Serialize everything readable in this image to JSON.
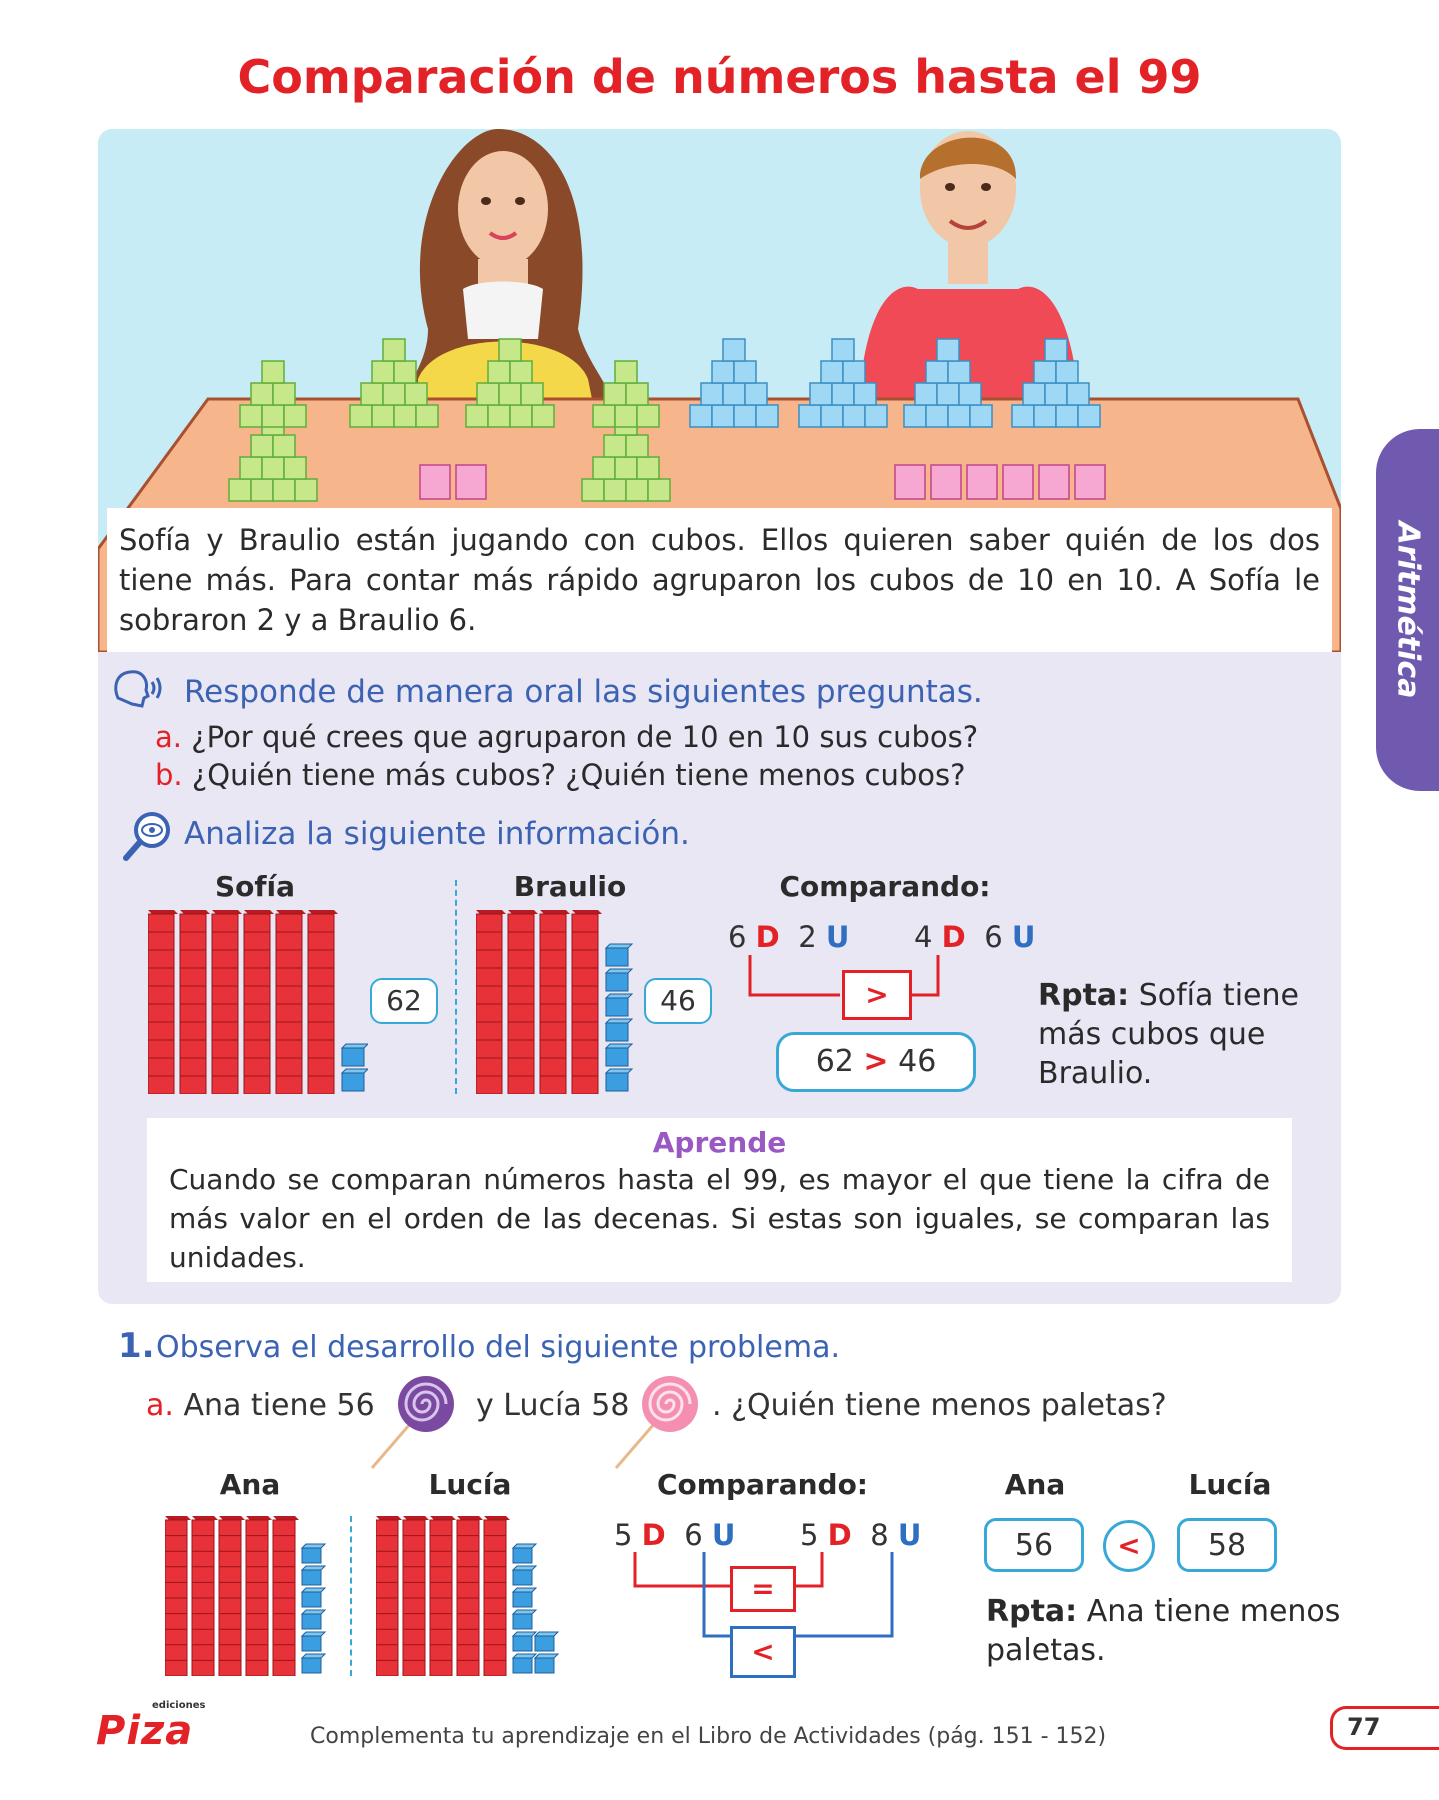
{
  "title": "Comparación de números hasta el 99",
  "side_tab": "Aritmética",
  "story": "Sofía y Braulio están jugando con cubos. Ellos quieren saber quién de los dos tiene más. Para contar más rápido agruparon los cubos de 10 en 10. A Sofía le sobraron 2 y a Braulio 6.",
  "oral": {
    "heading": "Responde de manera oral las siguientes preguntas.",
    "items": [
      {
        "letter": "a.",
        "text": "¿Por qué crees que agruparon de 10 en 10 sus cubos?"
      },
      {
        "letter": "b.",
        "text": "¿Quién tiene más cubos? ¿Quién tiene menos cubos?"
      }
    ]
  },
  "analyze": {
    "heading": "Analiza la siguiente información.",
    "left_name": "Sofía",
    "left_value": "62",
    "left_tens": 6,
    "left_units": 2,
    "right_name": "Braulio",
    "right_value": "46",
    "right_tens": 4,
    "right_units": 6,
    "comparing_label": "Comparando:",
    "left_d_digit": "6",
    "left_u_digit": "2",
    "right_d_digit": "4",
    "right_u_digit": "6",
    "d_letter": "D",
    "u_letter": "U",
    "sign": ">",
    "result_left": "62",
    "result_right": "46",
    "answer_label": "Rpta:",
    "answer_text": "Sofía tiene más cubos que Braulio."
  },
  "learn": {
    "title": "Aprende",
    "body": "Cuando se comparan números hasta el 99, es mayor el que tiene la cifra de más valor en el orden de las decenas. Si estas son iguales, se comparan las unidades."
  },
  "exercise": {
    "number": "1.",
    "heading": "Observa el desarrollo del siguiente problema.",
    "letter": "a.",
    "text_part1": "Ana tiene 56",
    "text_part2": "y Lucía 58",
    "text_part3": ". ¿Quién tiene menos paletas?",
    "left_name": "Ana",
    "left_tens": 5,
    "left_units": 6,
    "right_name": "Lucía",
    "right_tens": 5,
    "right_units": 8,
    "comparing_label": "Comparando:",
    "left_d_digit": "5",
    "left_u_digit": "6",
    "right_d_digit": "5",
    "right_u_digit": "8",
    "d_letter": "D",
    "u_letter": "U",
    "tens_sign": "=",
    "units_sign": "<",
    "result_left_name": "Ana",
    "result_right_name": "Lucía",
    "result_left": "56",
    "result_right": "58",
    "result_sign": "<",
    "answer_label": "Rpta:",
    "answer_text": "Ana tiene menos paletas."
  },
  "footer": {
    "logo_small": "ediciones",
    "logo": "Piza",
    "note": "Complementa tu aprendizaje en el Libro de Actividades (pág. 151 - 152)",
    "page": "77"
  },
  "colors": {
    "title_red": "#e32227",
    "heading_blue": "#3c63b3",
    "panel_blue": "#c8ecf5",
    "panel_lilac": "#e9e7f4",
    "tab_purple": "#6f5ab0",
    "learn_purple": "#9a58c4"
  }
}
